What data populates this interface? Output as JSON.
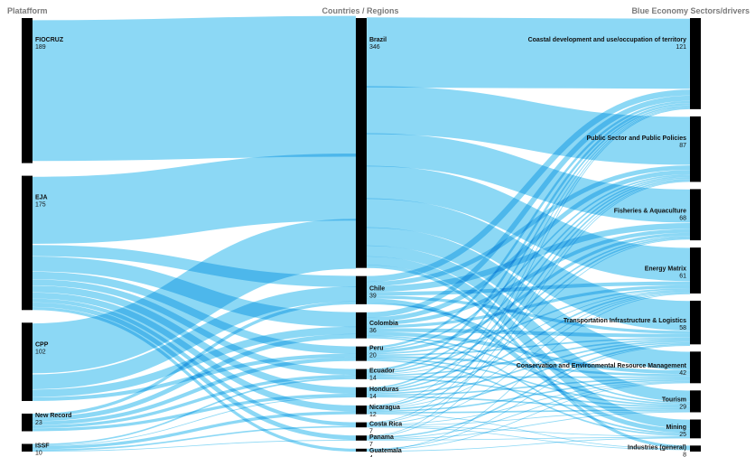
{
  "headers": {
    "left": "Platafform",
    "middle": "Countries / Regions",
    "right": "Blue Economy Sectors/drivers"
  },
  "colors": {
    "link": "#2eb8ec",
    "node": "#000000",
    "header": "#7a7a7a"
  },
  "chart_data": {
    "type": "sankey",
    "platforms": [
      {
        "name": "FIOCRUZ",
        "value": 189
      },
      {
        "name": "EJA",
        "value": 175
      },
      {
        "name": "CPP",
        "value": 102
      },
      {
        "name": "New Record",
        "value": 23
      },
      {
        "name": "ISSF",
        "value": 10
      }
    ],
    "countries": [
      {
        "name": "Brazil",
        "value": 346
      },
      {
        "name": "Chile",
        "value": 39
      },
      {
        "name": "Colombia",
        "value": 36
      },
      {
        "name": "Peru",
        "value": 20
      },
      {
        "name": "Ecuador",
        "value": 14
      },
      {
        "name": "Honduras",
        "value": 14
      },
      {
        "name": "Nicaragua",
        "value": 12
      },
      {
        "name": "Costa Rica",
        "value": 7
      },
      {
        "name": "Panama",
        "value": 7
      },
      {
        "name": "Guatemala",
        "value": 4
      }
    ],
    "sectors": [
      {
        "name": "Coastal development and use/occupation of territory",
        "value": 121
      },
      {
        "name": "Public Sector and Public Policies",
        "value": 87
      },
      {
        "name": "Fisheries & Aquaculture",
        "value": 68
      },
      {
        "name": "Energy Matrix",
        "value": 61
      },
      {
        "name": "Transportation Infrastructure & Logistics",
        "value": 58
      },
      {
        "name": "Conservation and Environmental Resource Management",
        "value": 42
      },
      {
        "name": "Tourism",
        "value": 29
      },
      {
        "name": "Mining",
        "value": 25
      },
      {
        "name": "Industries (general)",
        "value": 8
      }
    ],
    "links_platform_country": [
      {
        "source": "FIOCRUZ",
        "target": "Brazil",
        "value": 189
      },
      {
        "source": "EJA",
        "target": "Brazil",
        "value": 90
      },
      {
        "source": "EJA",
        "target": "Chile",
        "value": 15
      },
      {
        "source": "EJA",
        "target": "Colombia",
        "value": 20
      },
      {
        "source": "EJA",
        "target": "Peru",
        "value": 10
      },
      {
        "source": "EJA",
        "target": "Ecuador",
        "value": 8
      },
      {
        "source": "EJA",
        "target": "Honduras",
        "value": 9
      },
      {
        "source": "EJA",
        "target": "Nicaragua",
        "value": 8
      },
      {
        "source": "EJA",
        "target": "Costa Rica",
        "value": 5
      },
      {
        "source": "EJA",
        "target": "Panama",
        "value": 6
      },
      {
        "source": "EJA",
        "target": "Guatemala",
        "value": 4
      },
      {
        "source": "CPP",
        "target": "Brazil",
        "value": 67
      },
      {
        "source": "CPP",
        "target": "Chile",
        "value": 20
      },
      {
        "source": "CPP",
        "target": "Colombia",
        "value": 10
      },
      {
        "source": "CPP",
        "target": "Peru",
        "value": 5
      },
      {
        "source": "New Record",
        "target": "Chile",
        "value": 4
      },
      {
        "source": "New Record",
        "target": "Colombia",
        "value": 6
      },
      {
        "source": "New Record",
        "target": "Peru",
        "value": 5
      },
      {
        "source": "New Record",
        "target": "Ecuador",
        "value": 4
      },
      {
        "source": "New Record",
        "target": "Honduras",
        "value": 4
      },
      {
        "source": "ISSF",
        "target": "Ecuador",
        "value": 2
      },
      {
        "source": "ISSF",
        "target": "Honduras",
        "value": 1
      },
      {
        "source": "ISSF",
        "target": "Nicaragua",
        "value": 4
      },
      {
        "source": "ISSF",
        "target": "Costa Rica",
        "value": 2
      },
      {
        "source": "ISSF",
        "target": "Panama",
        "value": 1
      }
    ],
    "links_country_sector": [
      {
        "source": "Brazil",
        "target": "Coastal development and use/occupation of territory",
        "value": 95
      },
      {
        "source": "Brazil",
        "target": "Public Sector and Public Policies",
        "value": 65
      },
      {
        "source": "Brazil",
        "target": "Fisheries & Aquaculture",
        "value": 45
      },
      {
        "source": "Brazil",
        "target": "Energy Matrix",
        "value": 45
      },
      {
        "source": "Brazil",
        "target": "Transportation Infrastructure & Logistics",
        "value": 40
      },
      {
        "source": "Brazil",
        "target": "Conservation and Environmental Resource Management",
        "value": 25
      },
      {
        "source": "Brazil",
        "target": "Tourism",
        "value": 15
      },
      {
        "source": "Brazil",
        "target": "Mining",
        "value": 12
      },
      {
        "source": "Brazil",
        "target": "Industries (general)",
        "value": 4
      },
      {
        "source": "Chile",
        "target": "Coastal development and use/occupation of territory",
        "value": 8
      },
      {
        "source": "Chile",
        "target": "Public Sector and Public Policies",
        "value": 6
      },
      {
        "source": "Chile",
        "target": "Fisheries & Aquaculture",
        "value": 8
      },
      {
        "source": "Chile",
        "target": "Energy Matrix",
        "value": 5
      },
      {
        "source": "Chile",
        "target": "Transportation Infrastructure & Logistics",
        "value": 4
      },
      {
        "source": "Chile",
        "target": "Mining",
        "value": 6
      },
      {
        "source": "Chile",
        "target": "Tourism",
        "value": 2
      },
      {
        "source": "Colombia",
        "target": "Coastal development and use/occupation of territory",
        "value": 7
      },
      {
        "source": "Colombia",
        "target": "Public Sector and Public Policies",
        "value": 6
      },
      {
        "source": "Colombia",
        "target": "Fisheries & Aquaculture",
        "value": 5
      },
      {
        "source": "Colombia",
        "target": "Energy Matrix",
        "value": 4
      },
      {
        "source": "Colombia",
        "target": "Transportation Infrastructure & Logistics",
        "value": 5
      },
      {
        "source": "Colombia",
        "target": "Conservation and Environmental Resource Management",
        "value": 5
      },
      {
        "source": "Colombia",
        "target": "Tourism",
        "value": 2
      },
      {
        "source": "Colombia",
        "target": "Mining",
        "value": 2
      },
      {
        "source": "Peru",
        "target": "Coastal development and use/occupation of territory",
        "value": 3
      },
      {
        "source": "Peru",
        "target": "Public Sector and Public Policies",
        "value": 2
      },
      {
        "source": "Peru",
        "target": "Fisheries & Aquaculture",
        "value": 4
      },
      {
        "source": "Peru",
        "target": "Energy Matrix",
        "value": 2
      },
      {
        "source": "Peru",
        "target": "Transportation Infrastructure & Logistics",
        "value": 2
      },
      {
        "source": "Peru",
        "target": "Conservation and Environmental Resource Management",
        "value": 3
      },
      {
        "source": "Peru",
        "target": "Tourism",
        "value": 2
      },
      {
        "source": "Peru",
        "target": "Mining",
        "value": 2
      },
      {
        "source": "Ecuador",
        "target": "Coastal development and use/occupation of territory",
        "value": 3
      },
      {
        "source": "Ecuador",
        "target": "Public Sector and Public Policies",
        "value": 2
      },
      {
        "source": "Ecuador",
        "target": "Fisheries & Aquaculture",
        "value": 2
      },
      {
        "source": "Ecuador",
        "target": "Energy Matrix",
        "value": 1
      },
      {
        "source": "Ecuador",
        "target": "Transportation Infrastructure & Logistics",
        "value": 2
      },
      {
        "source": "Ecuador",
        "target": "Conservation and Environmental Resource Management",
        "value": 2
      },
      {
        "source": "Ecuador",
        "target": "Tourism",
        "value": 2
      },
      {
        "source": "Honduras",
        "target": "Coastal development and use/occupation of territory",
        "value": 2
      },
      {
        "source": "Honduras",
        "target": "Public Sector and Public Policies",
        "value": 2
      },
      {
        "source": "Honduras",
        "target": "Fisheries & Aquaculture",
        "value": 2
      },
      {
        "source": "Honduras",
        "target": "Energy Matrix",
        "value": 2
      },
      {
        "source": "Honduras",
        "target": "Transportation Infrastructure & Logistics",
        "value": 2
      },
      {
        "source": "Honduras",
        "target": "Conservation and Environmental Resource Management",
        "value": 2
      },
      {
        "source": "Honduras",
        "target": "Tourism",
        "value": 2
      },
      {
        "source": "Nicaragua",
        "target": "Coastal development and use/occupation of territory",
        "value": 1
      },
      {
        "source": "Nicaragua",
        "target": "Public Sector and Public Policies",
        "value": 2
      },
      {
        "source": "Nicaragua",
        "target": "Fisheries & Aquaculture",
        "value": 1
      },
      {
        "source": "Nicaragua",
        "target": "Energy Matrix",
        "value": 1
      },
      {
        "source": "Nicaragua",
        "target": "Transportation Infrastructure & Logistics",
        "value": 2
      },
      {
        "source": "Nicaragua",
        "target": "Conservation and Environmental Resource Management",
        "value": 2
      },
      {
        "source": "Nicaragua",
        "target": "Tourism",
        "value": 2
      },
      {
        "source": "Nicaragua",
        "target": "Industries (general)",
        "value": 1
      },
      {
        "source": "Costa Rica",
        "target": "Coastal development and use/occupation of territory",
        "value": 1
      },
      {
        "source": "Costa Rica",
        "target": "Public Sector and Public Policies",
        "value": 1
      },
      {
        "source": "Costa Rica",
        "target": "Energy Matrix",
        "value": 1
      },
      {
        "source": "Costa Rica",
        "target": "Conservation and Environmental Resource Management",
        "value": 1
      },
      {
        "source": "Costa Rica",
        "target": "Tourism",
        "value": 1
      },
      {
        "source": "Costa Rica",
        "target": "Mining",
        "value": 1
      },
      {
        "source": "Costa Rica",
        "target": "Industries (general)",
        "value": 1
      },
      {
        "source": "Panama",
        "target": "Coastal development and use/occupation of territory",
        "value": 1
      },
      {
        "source": "Panama",
        "target": "Public Sector and Public Policies",
        "value": 1
      },
      {
        "source": "Panama",
        "target": "Transportation Infrastructure & Logistics",
        "value": 2
      },
      {
        "source": "Panama",
        "target": "Conservation and Environmental Resource Management",
        "value": 1
      },
      {
        "source": "Panama",
        "target": "Tourism",
        "value": 1
      },
      {
        "source": "Panama",
        "target": "Mining",
        "value": 1
      },
      {
        "source": "Guatemala",
        "target": "Transportation Infrastructure & Logistics",
        "value": 1
      },
      {
        "source": "Guatemala",
        "target": "Conservation and Environmental Resource Management",
        "value": 1
      },
      {
        "source": "Guatemala",
        "target": "Energy Matrix",
        "value": 1
      },
      {
        "source": "Guatemala",
        "target": "Mining",
        "value": 1
      }
    ]
  }
}
